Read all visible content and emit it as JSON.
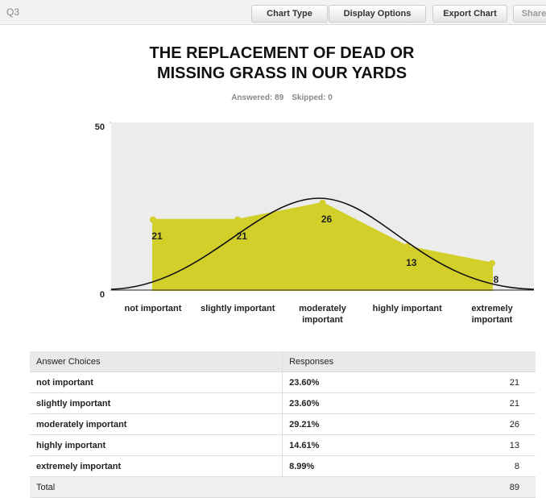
{
  "toolbar": {
    "question": "Q3",
    "buttons": [
      "Chart Type",
      "Display Options",
      "Export Chart",
      "Share"
    ]
  },
  "chart_data": {
    "type": "area",
    "title": "THE REPLACEMENT OF DEAD OR MISSING GRASS IN OUR YARDS",
    "subtitle": [
      "Answered: 89",
      "Skipped: 0"
    ],
    "categories": [
      "not important",
      "slightly important",
      "moderately important",
      "highly important",
      "extremely important"
    ],
    "values": [
      21,
      21,
      26,
      13,
      8
    ],
    "color": "#d3cf2a",
    "ylim": [
      0,
      50
    ],
    "yticks": [
      0,
      50
    ]
  },
  "table": {
    "header": [
      "Answer Choices",
      "Responses"
    ],
    "rows": [
      [
        "not important",
        "23.60%",
        21
      ],
      [
        "slightly important",
        "23.60%",
        21
      ],
      [
        "moderately important",
        "29.21%",
        26
      ],
      [
        "highly important",
        "14.61%",
        13
      ],
      [
        "extremely important",
        "8.99%",
        8
      ]
    ],
    "total": [
      "Total",
      89
    ]
  }
}
